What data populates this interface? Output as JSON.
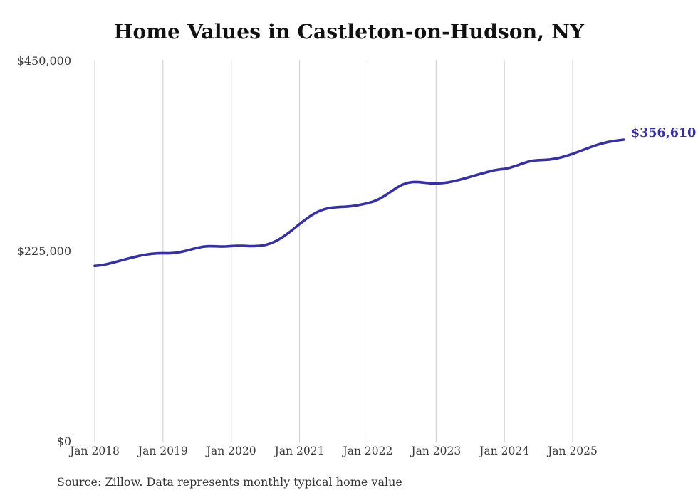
{
  "chart_data": {
    "type": "line",
    "title": "Home Values in Castleton-on-Hudson, NY",
    "source": "Source: Zillow. Data represents monthly typical home value",
    "end_label": "$356,610",
    "line_color": "#37319b",
    "gridline_color": "#cccccc",
    "grid": "vertical-only",
    "legend": "none",
    "ylim": [
      0,
      450000
    ],
    "y_tick_labels": [
      "$450,000",
      "$225,000",
      "$0"
    ],
    "x_tick_labels": [
      "Jan 2018",
      "Jan 2019",
      "Jan 2020",
      "Jan 2021",
      "Jan 2022",
      "Jan 2023",
      "Jan 2024",
      "Jan 2025"
    ],
    "series": [
      {
        "name": "Monthly typical home value",
        "months": [
          "Jan 2018",
          "Feb 2018",
          "Mar 2018",
          "Apr 2018",
          "May 2018",
          "Jun 2018",
          "Jul 2018",
          "Aug 2018",
          "Sep 2018",
          "Oct 2018",
          "Nov 2018",
          "Dec 2018",
          "Jan 2019",
          "Feb 2019",
          "Mar 2019",
          "Apr 2019",
          "May 2019",
          "Jun 2019",
          "Jul 2019",
          "Aug 2019",
          "Sep 2019",
          "Oct 2019",
          "Nov 2019",
          "Dec 2019",
          "Jan 2020",
          "Feb 2020",
          "Mar 2020",
          "Apr 2020",
          "May 2020",
          "Jun 2020",
          "Jul 2020",
          "Aug 2020",
          "Sep 2020",
          "Oct 2020",
          "Nov 2020",
          "Dec 2020",
          "Jan 2021",
          "Feb 2021",
          "Mar 2021",
          "Apr 2021",
          "May 2021",
          "Jun 2021",
          "Jul 2021",
          "Aug 2021",
          "Sep 2021",
          "Oct 2021",
          "Nov 2021",
          "Dec 2021",
          "Jan 2022",
          "Feb 2022",
          "Mar 2022",
          "Apr 2022",
          "May 2022",
          "Jun 2022",
          "Jul 2022",
          "Aug 2022",
          "Sep 2022",
          "Oct 2022",
          "Nov 2022",
          "Dec 2022",
          "Jan 2023",
          "Feb 2023",
          "Mar 2023",
          "Apr 2023",
          "May 2023",
          "Jun 2023",
          "Jul 2023",
          "Aug 2023",
          "Sep 2023",
          "Oct 2023",
          "Nov 2023",
          "Dec 2023",
          "Jan 2024",
          "Feb 2024",
          "Mar 2024",
          "Apr 2024",
          "May 2024",
          "Jun 2024",
          "Jul 2024",
          "Aug 2024",
          "Sep 2024",
          "Oct 2024",
          "Nov 2024",
          "Dec 2024",
          "Jan 2025",
          "Feb 2025",
          "Mar 2025",
          "Apr 2025",
          "May 2025",
          "Jun 2025",
          "Jul 2025",
          "Aug 2025",
          "Sep 2025",
          "Oct 2025"
        ],
        "values": [
          207500,
          208200,
          209400,
          211000,
          212800,
          214600,
          216300,
          218000,
          219600,
          220900,
          221800,
          222300,
          222600,
          222400,
          222800,
          223800,
          225300,
          227100,
          228900,
          230200,
          230800,
          230700,
          230400,
          230500,
          231000,
          231300,
          231300,
          231000,
          230900,
          231300,
          232300,
          234300,
          237400,
          241400,
          246200,
          251500,
          257000,
          262200,
          266900,
          270800,
          273700,
          275600,
          276600,
          277100,
          277400,
          277900,
          278900,
          280200,
          281600,
          283600,
          286500,
          290400,
          295000,
          299600,
          303300,
          305700,
          306700,
          306500,
          305800,
          305200,
          305000,
          305300,
          306100,
          307400,
          309000,
          310800,
          312700,
          314700,
          316600,
          318400,
          320100,
          321300,
          322100,
          323500,
          325600,
          328000,
          330200,
          331700,
          332400,
          332700,
          333200,
          334200,
          335700,
          337600,
          339800,
          342300,
          344900,
          347400,
          349700,
          351800,
          353500,
          354800,
          355800,
          356610
        ]
      }
    ]
  }
}
